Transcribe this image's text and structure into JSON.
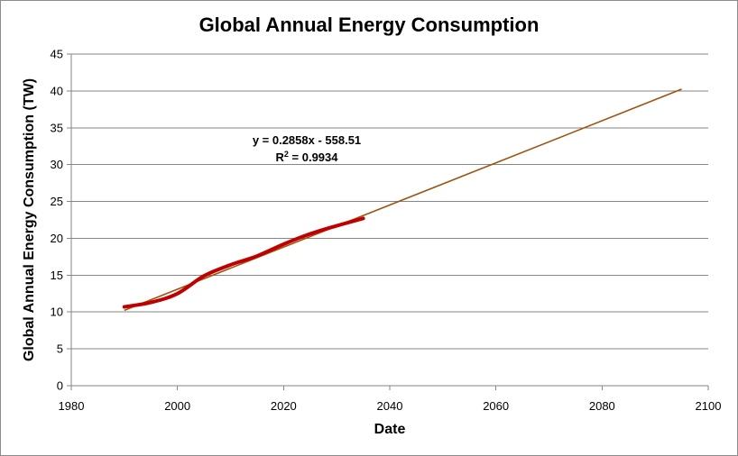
{
  "chart_data": {
    "type": "line",
    "title": "Global Annual Energy Consumption",
    "xlabel": "Date",
    "ylabel": "Global Annual Energy Consumption (TW)",
    "xlim": [
      1980,
      2100
    ],
    "ylim": [
      0,
      45
    ],
    "x_ticks": [
      1980,
      2000,
      2020,
      2040,
      2060,
      2080,
      2100
    ],
    "y_ticks": [
      0,
      5,
      10,
      15,
      20,
      25,
      30,
      35,
      40,
      45
    ],
    "grid": "horizontal",
    "legend": "none",
    "series": [
      {
        "type": "line",
        "color": "#c00000",
        "x": [
          1990,
          1995,
          2000,
          2005,
          2010,
          2015,
          2020,
          2025,
          2030,
          2035
        ],
        "y": [
          10.7,
          11.3,
          12.5,
          14.9,
          16.4,
          17.6,
          19.2,
          20.6,
          21.7,
          22.7
        ]
      },
      {
        "type": "trendline",
        "color": "#a0520f",
        "slope": 0.2858,
        "intercept": -558.51,
        "x_range": [
          1990,
          2095
        ]
      }
    ],
    "annotations": {
      "equation": "y = 0.2858x - 558.51",
      "r_squared_prefix": "R",
      "r_squared_exponent": "2",
      "r_squared_value": " = 0.9934"
    }
  }
}
